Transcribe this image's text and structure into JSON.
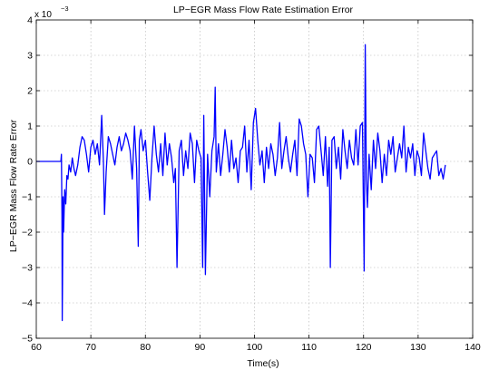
{
  "chart_data": {
    "type": "line",
    "title": "LP−EGR Mass Flow Rate Estimation Error",
    "xlabel": "Time(s)",
    "ylabel": "LP−EGR Mass Flow Rate Error",
    "exponent_label": {
      "base": "x 10",
      "power": "−3"
    },
    "xlim": [
      60,
      140
    ],
    "ylim": [
      -5,
      4
    ],
    "x_ticks": [
      60,
      70,
      80,
      90,
      100,
      110,
      120,
      130,
      140
    ],
    "y_ticks": [
      -5,
      -4,
      -3,
      -2,
      -1,
      0,
      1,
      2,
      3,
      4
    ],
    "x_tick_labels": [
      "60",
      "70",
      "80",
      "90",
      "100",
      "110",
      "120",
      "130",
      "140"
    ],
    "y_tick_labels": [
      "−5",
      "−4",
      "−3",
      "−2",
      "−1",
      "0",
      "1",
      "2",
      "3",
      "4"
    ],
    "grid": true,
    "series_color": "#0000ff",
    "series": [
      {
        "x": [
          60,
          64.5,
          64.6,
          64.7,
          64.75,
          64.8,
          64.9,
          65,
          65.2,
          65.4,
          65.6,
          65.8,
          66,
          66.3,
          66.6,
          66.9,
          67.2,
          67.6,
          68,
          68.4,
          68.8,
          69.2,
          69.6,
          70,
          70.4,
          70.8,
          71.2,
          71.6,
          72,
          72.3,
          72.5,
          72.8,
          73.2,
          73.6,
          74,
          74.4,
          74.8,
          75.2,
          75.6,
          76,
          76.4,
          76.8,
          77.2,
          77.6,
          78,
          78.4,
          78.7,
          78.9,
          79.2,
          79.6,
          80,
          80.4,
          80.8,
          81.2,
          81.6,
          82,
          82.4,
          82.8,
          83.2,
          83.6,
          84,
          84.4,
          84.8,
          85.2,
          85.5,
          85.8,
          86.2,
          86.6,
          87,
          87.4,
          87.8,
          88.2,
          88.6,
          89,
          89.4,
          89.8,
          90.2,
          90.5,
          90.7,
          91,
          91.4,
          91.8,
          92.2,
          92.6,
          92.8,
          93,
          93.4,
          93.8,
          94.2,
          94.6,
          95,
          95.4,
          95.8,
          96.2,
          96.6,
          97,
          97.4,
          97.8,
          98.2,
          98.6,
          99,
          99.4,
          99.8,
          100.2,
          100.6,
          101,
          101.4,
          101.8,
          102.2,
          102.6,
          103,
          103.4,
          103.8,
          104.2,
          104.6,
          105,
          105.4,
          105.8,
          106.2,
          106.6,
          107,
          107.4,
          107.8,
          108.2,
          108.6,
          109,
          109.4,
          109.8,
          110.2,
          110.6,
          111,
          111.4,
          111.8,
          112.2,
          112.6,
          113,
          113.4,
          113.7,
          113.9,
          114.2,
          114.6,
          115,
          115.4,
          115.8,
          116.2,
          116.6,
          117,
          117.4,
          117.8,
          118.2,
          118.6,
          119,
          119.4,
          119.8,
          120.1,
          120.3,
          120.5,
          120.7,
          121,
          121.4,
          121.8,
          122.2,
          122.6,
          123,
          123.4,
          123.8,
          124.2,
          124.6,
          125,
          125.4,
          125.8,
          126.2,
          126.6,
          127,
          127.4,
          127.8,
          128.2,
          128.6,
          129,
          129.4,
          129.8,
          130.2,
          130.6,
          131,
          131.4,
          131.8,
          132.2,
          132.6,
          133,
          133.4,
          133.8,
          134.2,
          134.6,
          135
        ],
        "y": [
          0,
          0,
          0.2,
          -1.5,
          -4.5,
          -3.5,
          -1.0,
          -2.0,
          -0.8,
          -1.2,
          -0.4,
          -0.5,
          -0.1,
          -0.3,
          0.1,
          -0.2,
          -0.4,
          -0.1,
          0.4,
          0.7,
          0.6,
          0.2,
          -0.3,
          0.4,
          0.6,
          0.2,
          0.5,
          -0.1,
          1.3,
          0.0,
          -1.5,
          -0.3,
          0.7,
          0.5,
          0.2,
          -0.1,
          0.4,
          0.7,
          0.3,
          0.5,
          0.8,
          0.6,
          0.3,
          -0.5,
          1.0,
          -0.2,
          -2.4,
          0.6,
          0.9,
          0.3,
          0.6,
          -0.3,
          -1.1,
          0.1,
          1.0,
          0.2,
          -0.3,
          0.5,
          -0.4,
          0.8,
          -0.1,
          0.5,
          0.1,
          -0.6,
          -0.2,
          -3.0,
          0.3,
          0.6,
          -0.4,
          0.3,
          -0.2,
          0.8,
          0.5,
          -0.6,
          0.6,
          0.3,
          0.1,
          -3.0,
          1.3,
          -3.2,
          0.2,
          -1.0,
          0.3,
          0.7,
          2.1,
          -0.3,
          0.5,
          -0.4,
          0.2,
          0.9,
          0.4,
          -0.3,
          0.6,
          -0.2,
          0.1,
          -0.6,
          0.3,
          0.4,
          1.0,
          -0.3,
          0.6,
          -0.8,
          1.1,
          1.5,
          0.6,
          -0.1,
          0.3,
          -0.6,
          0.4,
          -0.2,
          0.5,
          0.2,
          -0.4,
          0.1,
          1.1,
          -0.2,
          0.3,
          0.7,
          0.1,
          -0.3,
          0.2,
          0.6,
          -0.4,
          1.2,
          1.0,
          0.5,
          0.2,
          -1.0,
          0.2,
          0.1,
          -0.6,
          0.9,
          1.0,
          0.3,
          -0.4,
          0.7,
          -0.7,
          0.4,
          -3.0,
          0.6,
          0.7,
          -0.2,
          0.4,
          -0.5,
          0.9,
          0.3,
          -0.2,
          0.6,
          0.1,
          -0.1,
          0.9,
          -0.1,
          1.0,
          1.1,
          -3.1,
          3.3,
          -0.5,
          -1.3,
          0.2,
          -0.8,
          0.6,
          -0.2,
          0.8,
          0.3,
          -0.6,
          0.2,
          -0.4,
          0.6,
          0.2,
          0.7,
          -0.3,
          0.1,
          0.5,
          0.1,
          1.0,
          -0.3,
          0.4,
          0.1,
          0.5,
          -0.4,
          0.3,
          0.1,
          -0.4,
          0.8,
          0.3,
          -0.2,
          -0.5,
          0.1,
          0.2,
          0.3,
          -0.4,
          -0.2,
          -0.5,
          -0.1
        ]
      }
    ]
  }
}
